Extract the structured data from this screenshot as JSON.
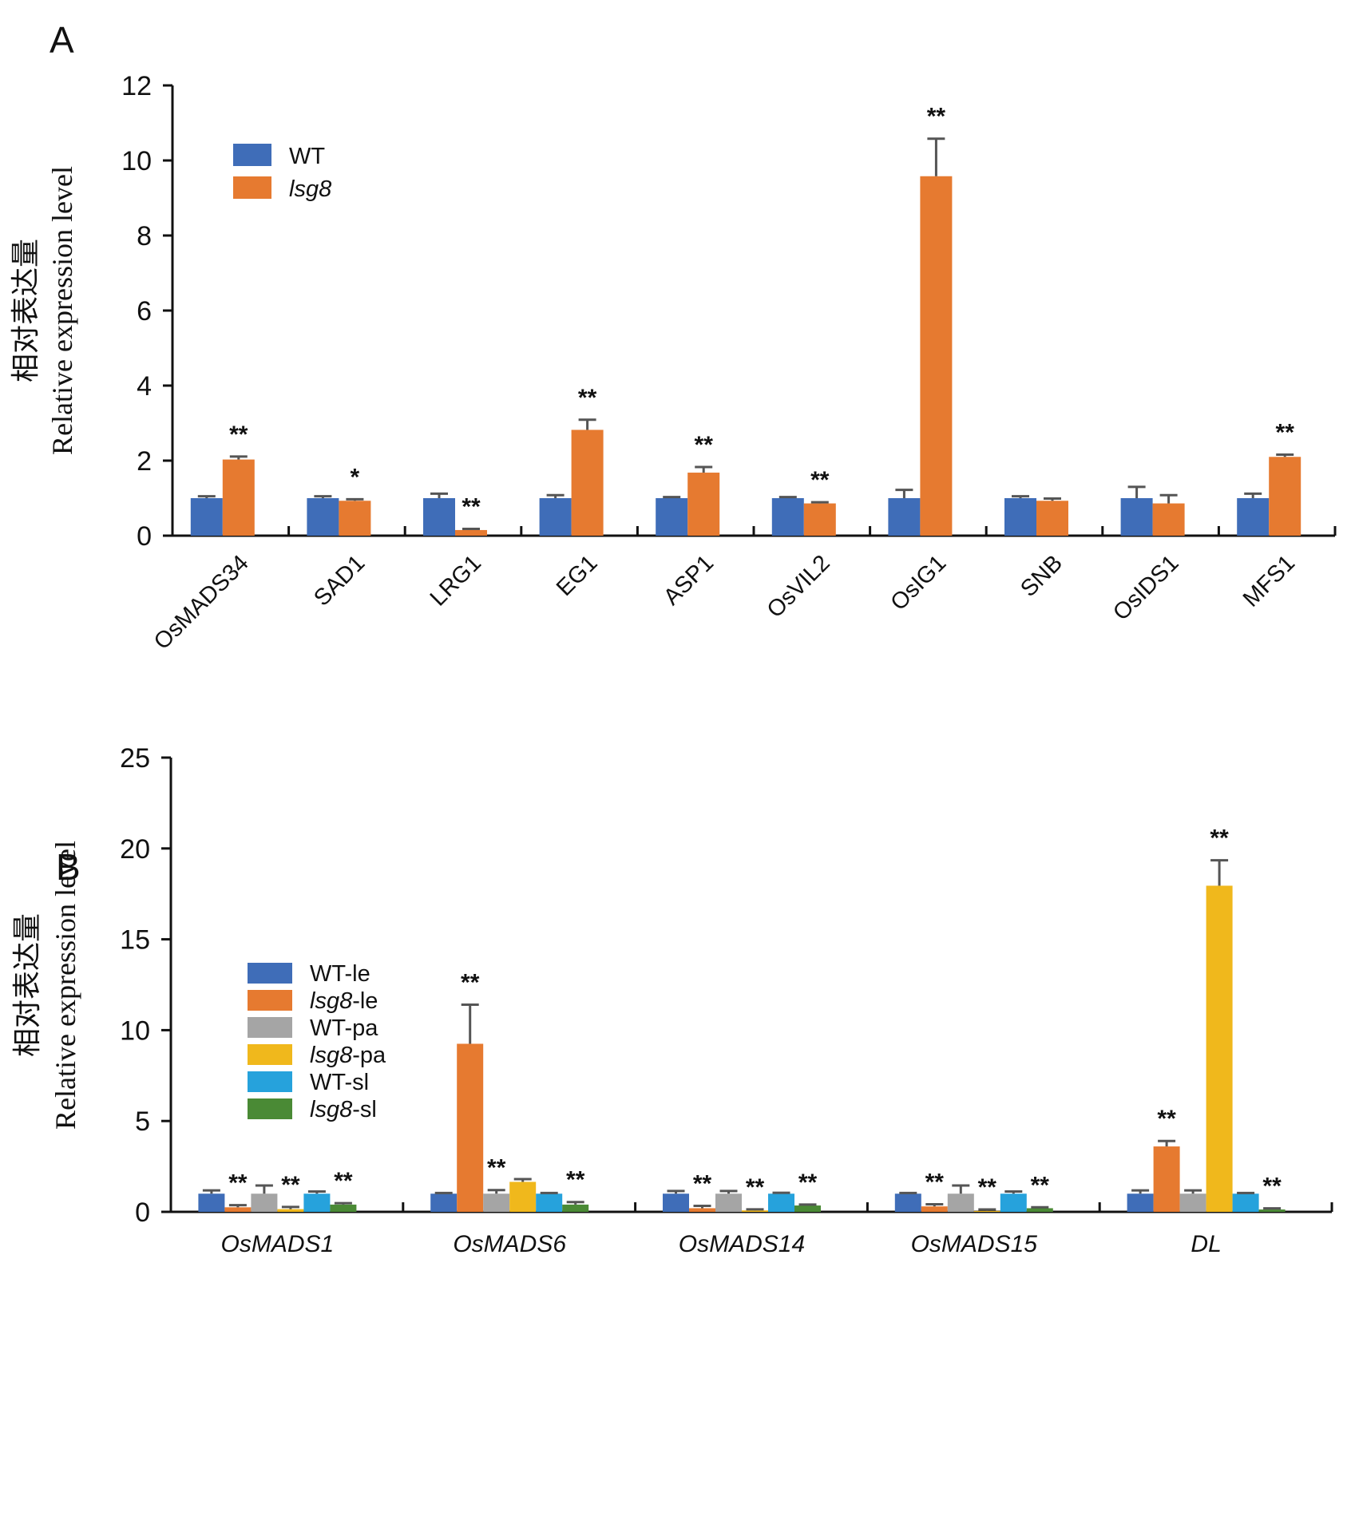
{
  "chart_data": [
    {
      "panel": "A",
      "type": "bar",
      "title": "",
      "xlabel": "",
      "ylabel_cn": "相对表达量",
      "ylabel": "Relative expression level",
      "ylim": [
        0,
        12
      ],
      "yticks": [
        0,
        2,
        4,
        6,
        8,
        10,
        12
      ],
      "grid": false,
      "legend_position": "top-left",
      "categories": [
        "OsMADS34",
        "SAD1",
        "LRG1",
        "EG1",
        "ASP1",
        "OsVIL2",
        "OsIG1",
        "SNB",
        "OsIDS1",
        "MFS1"
      ],
      "series": [
        {
          "name": "WT",
          "italic": false,
          "color": "#3f6db8",
          "values": [
            1.0,
            1.0,
            1.0,
            1.0,
            1.0,
            1.0,
            1.0,
            1.0,
            1.0,
            1.0
          ],
          "errors": [
            0.05,
            0.05,
            0.12,
            0.08,
            0.03,
            0.03,
            0.22,
            0.05,
            0.3,
            0.12
          ],
          "significance": [
            "",
            "",
            "",
            "",
            "",
            "",
            "",
            "",
            "",
            ""
          ]
        },
        {
          "name": "lsg8",
          "italic": true,
          "color": "#e67a30",
          "values": [
            2.03,
            0.93,
            0.15,
            2.82,
            1.68,
            0.86,
            9.58,
            0.93,
            0.86,
            2.1
          ],
          "errors": [
            0.08,
            0.04,
            0.03,
            0.27,
            0.15,
            0.03,
            1.0,
            0.06,
            0.22,
            0.06
          ],
          "significance": [
            "**",
            "*",
            "**",
            "**",
            "**",
            "**",
            "**",
            "",
            "",
            "**"
          ]
        }
      ]
    },
    {
      "panel": "B",
      "type": "bar",
      "title": "",
      "xlabel": "",
      "ylabel_cn": "相对表达量",
      "ylabel": "Relative expression level",
      "ylim": [
        0,
        25
      ],
      "yticks": [
        0,
        5,
        10,
        15,
        20,
        25
      ],
      "grid": false,
      "legend_position": "top-left",
      "categories": [
        "OsMADS1",
        "OsMADS6",
        "OsMADS14",
        "OsMADS15",
        "DL"
      ],
      "series": [
        {
          "name_italic": "",
          "name_rest": "WT-le",
          "name": "WT-le",
          "color": "#3f6db8",
          "values": [
            1.0,
            1.0,
            1.0,
            1.0,
            1.0
          ],
          "errors": [
            0.18,
            0.04,
            0.15,
            0.04,
            0.18
          ],
          "significance": [
            "",
            "",
            "",
            "",
            ""
          ]
        },
        {
          "name_italic": "lsg8",
          "name_rest": "-le",
          "name": "lsg8-le",
          "color": "#e67a30",
          "values": [
            0.25,
            9.25,
            0.2,
            0.3,
            3.6
          ],
          "errors": [
            0.12,
            2.15,
            0.13,
            0.12,
            0.3
          ],
          "significance": [
            "**",
            "**",
            "**",
            "**",
            "**"
          ]
        },
        {
          "name_italic": "",
          "name_rest": "WT-pa",
          "name": "WT-pa",
          "color": "#a5a5a5",
          "values": [
            1.0,
            1.0,
            1.0,
            1.0,
            1.0
          ],
          "errors": [
            0.45,
            0.2,
            0.15,
            0.45,
            0.18
          ],
          "significance": [
            "",
            "**",
            "",
            "",
            ""
          ]
        },
        {
          "name_italic": "lsg8",
          "name_rest": "-pa",
          "name": "lsg8-pa",
          "color": "#f0b81c",
          "values": [
            0.15,
            1.65,
            0.08,
            0.05,
            17.95
          ],
          "errors": [
            0.12,
            0.15,
            0.06,
            0.08,
            1.4
          ],
          "significance": [
            "**",
            "",
            "**",
            "**",
            "**"
          ]
        },
        {
          "name_italic": "",
          "name_rest": "WT-sl",
          "name": "WT-sl",
          "color": "#26a2dc",
          "values": [
            1.0,
            1.0,
            1.0,
            1.0,
            1.0
          ],
          "errors": [
            0.12,
            0.04,
            0.05,
            0.12,
            0.04
          ],
          "significance": [
            "",
            "",
            "",
            "",
            ""
          ]
        },
        {
          "name_italic": "lsg8",
          "name_rest": "-sl",
          "name": "lsg8-sl",
          "color": "#4a8a35",
          "values": [
            0.4,
            0.4,
            0.35,
            0.2,
            0.13
          ],
          "errors": [
            0.08,
            0.14,
            0.05,
            0.05,
            0.06
          ],
          "significance": [
            "**",
            "**",
            "**",
            "**",
            "**"
          ]
        }
      ]
    }
  ]
}
